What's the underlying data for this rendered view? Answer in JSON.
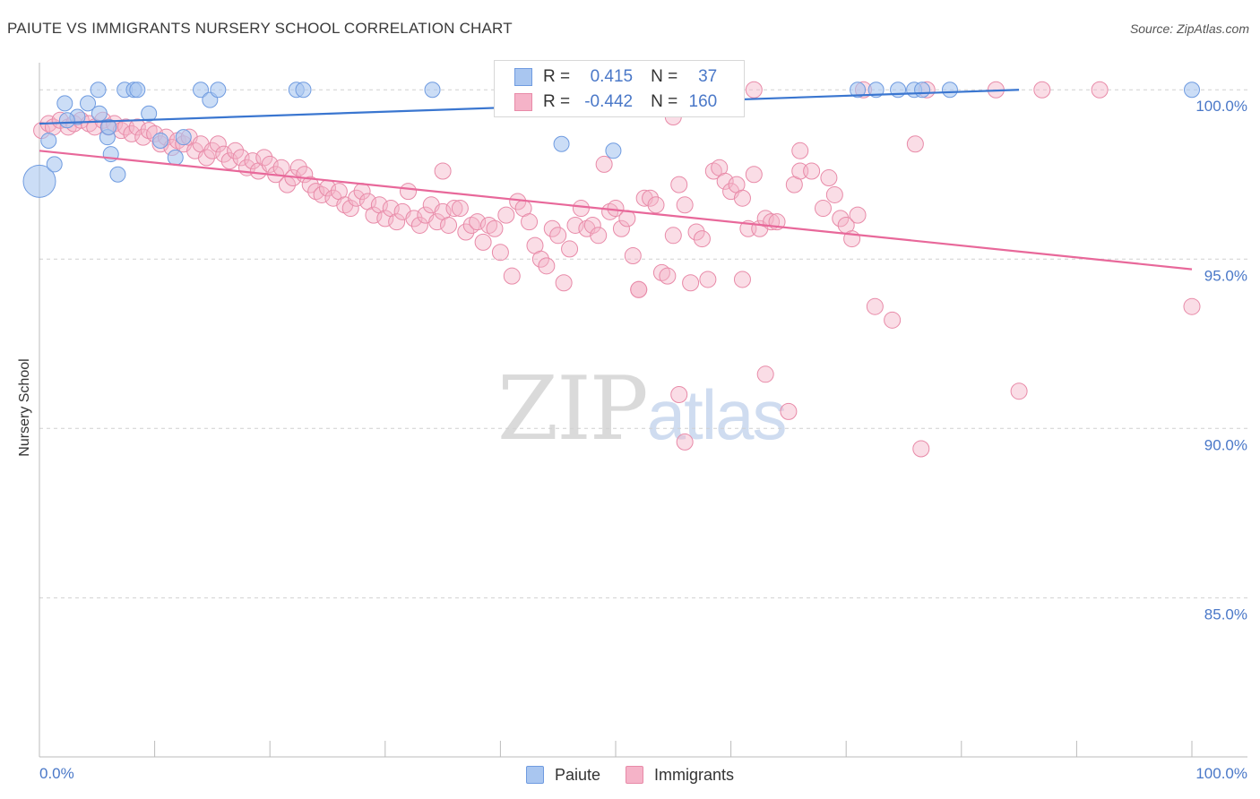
{
  "title": "PAIUTE VS IMMIGRANTS NURSERY SCHOOL CORRELATION CHART",
  "source": "Source: ZipAtlas.com",
  "watermark": {
    "zip": "ZIP",
    "atlas": "atlas"
  },
  "legend_top": {
    "r_label": "R =",
    "n_label": "N =",
    "rows": [
      {
        "name": "Paiute",
        "r": "0.415",
        "n": "37"
      },
      {
        "name": "Immigrants",
        "r": "-0.442",
        "n": "160"
      }
    ]
  },
  "legend_bottom": [
    "Paiute",
    "Immigrants"
  ],
  "colors": {
    "paiute_fill": "#a9c6f0",
    "paiute_stroke": "#6f9be0",
    "paiute_line": "#3a76d0",
    "immigrants_fill": "#f5b3c8",
    "immigrants_stroke": "#e88aa8",
    "immigrants_line": "#e8689a",
    "tick_text": "#4a78c8",
    "grid": "#d0d0d0"
  },
  "chart_data": {
    "type": "scatter",
    "title": "PAIUTE VS IMMIGRANTS NURSERY SCHOOL CORRELATION CHART",
    "xlabel": "",
    "ylabel": "Nursery School",
    "xlim": [
      0,
      100
    ],
    "ylim": [
      80.3,
      100.8
    ],
    "x_tick_labels": [
      "0.0%",
      "100.0%"
    ],
    "y_ticks": [
      85,
      90,
      95,
      100
    ],
    "y_tick_labels": [
      "85.0%",
      "90.0%",
      "95.0%",
      "100.0%"
    ],
    "grid": true,
    "series": [
      {
        "name": "Paiute",
        "r": 0.415,
        "n": 37,
        "trend": {
          "x": [
            0,
            85
          ],
          "y": [
            99.0,
            100.0
          ]
        },
        "points": [
          [
            0.0,
            97.3
          ],
          [
            0.8,
            98.5
          ],
          [
            1.3,
            97.8
          ],
          [
            2.2,
            99.6
          ],
          [
            3.3,
            99.2
          ],
          [
            4.2,
            99.6
          ],
          [
            5.1,
            100.0
          ],
          [
            5.2,
            99.3
          ],
          [
            5.9,
            98.6
          ],
          [
            6.2,
            98.1
          ],
          [
            6.8,
            97.5
          ],
          [
            7.4,
            100.0
          ],
          [
            8.2,
            100.0
          ],
          [
            8.5,
            100.0
          ],
          [
            9.5,
            99.3
          ],
          [
            10.5,
            98.5
          ],
          [
            11.8,
            98.0
          ],
          [
            12.5,
            98.6
          ],
          [
            14.0,
            100.0
          ],
          [
            14.8,
            99.7
          ],
          [
            15.5,
            100.0
          ],
          [
            22.3,
            100.0
          ],
          [
            22.9,
            100.0
          ],
          [
            34.1,
            100.0
          ],
          [
            45.0,
            100.0
          ],
          [
            45.9,
            100.0
          ],
          [
            45.3,
            98.4
          ],
          [
            49.8,
            98.2
          ],
          [
            71.0,
            100.0
          ],
          [
            72.6,
            100.0
          ],
          [
            74.5,
            100.0
          ],
          [
            75.9,
            100.0
          ],
          [
            76.6,
            100.0
          ],
          [
            79.0,
            100.0
          ],
          [
            100.0,
            100.0
          ],
          [
            2.4,
            99.1
          ],
          [
            6.0,
            98.9
          ]
        ]
      },
      {
        "name": "Immigrants",
        "r": -0.442,
        "n": 160,
        "trend": {
          "x": [
            0,
            100
          ],
          "y": [
            98.2,
            94.7
          ]
        },
        "points": [
          [
            0.2,
            98.8
          ],
          [
            0.8,
            99.0
          ],
          [
            1.2,
            98.9
          ],
          [
            1.8,
            99.1
          ],
          [
            2.5,
            98.9
          ],
          [
            3.0,
            99.0
          ],
          [
            3.6,
            99.1
          ],
          [
            4.3,
            99.0
          ],
          [
            4.8,
            98.9
          ],
          [
            5.5,
            99.1
          ],
          [
            6.0,
            98.9
          ],
          [
            6.5,
            99.0
          ],
          [
            7.1,
            98.8
          ],
          [
            7.5,
            98.9
          ],
          [
            8.0,
            98.7
          ],
          [
            8.5,
            98.9
          ],
          [
            9.0,
            98.6
          ],
          [
            9.5,
            98.8
          ],
          [
            10.0,
            98.7
          ],
          [
            10.5,
            98.4
          ],
          [
            11.0,
            98.6
          ],
          [
            11.5,
            98.3
          ],
          [
            12.0,
            98.5
          ],
          [
            12.5,
            98.4
          ],
          [
            13.0,
            98.6
          ],
          [
            13.5,
            98.2
          ],
          [
            14.0,
            98.4
          ],
          [
            14.5,
            98.0
          ],
          [
            15.0,
            98.2
          ],
          [
            15.5,
            98.4
          ],
          [
            16.0,
            98.1
          ],
          [
            16.5,
            97.9
          ],
          [
            17.0,
            98.2
          ],
          [
            17.5,
            98.0
          ],
          [
            18.0,
            97.7
          ],
          [
            18.5,
            97.9
          ],
          [
            19.0,
            97.6
          ],
          [
            19.5,
            98.0
          ],
          [
            20.0,
            97.8
          ],
          [
            20.5,
            97.5
          ],
          [
            21.0,
            97.7
          ],
          [
            21.5,
            97.2
          ],
          [
            22.0,
            97.4
          ],
          [
            22.5,
            97.7
          ],
          [
            23.0,
            97.5
          ],
          [
            23.5,
            97.2
          ],
          [
            24.0,
            97.0
          ],
          [
            24.5,
            96.9
          ],
          [
            25.0,
            97.1
          ],
          [
            25.5,
            96.8
          ],
          [
            26.0,
            97.0
          ],
          [
            26.5,
            96.6
          ],
          [
            27.0,
            96.5
          ],
          [
            27.5,
            96.8
          ],
          [
            28.0,
            97.0
          ],
          [
            28.5,
            96.7
          ],
          [
            29.0,
            96.3
          ],
          [
            29.5,
            96.6
          ],
          [
            30.0,
            96.2
          ],
          [
            30.5,
            96.5
          ],
          [
            31.0,
            96.1
          ],
          [
            31.5,
            96.4
          ],
          [
            32.0,
            97.0
          ],
          [
            32.5,
            96.2
          ],
          [
            33.0,
            96.0
          ],
          [
            33.5,
            96.3
          ],
          [
            34.0,
            96.6
          ],
          [
            34.5,
            96.1
          ],
          [
            35.0,
            96.4
          ],
          [
            35.5,
            96.0
          ],
          [
            36.0,
            96.5
          ],
          [
            36.5,
            96.5
          ],
          [
            37.0,
            95.8
          ],
          [
            37.5,
            96.0
          ],
          [
            38.0,
            96.1
          ],
          [
            38.5,
            95.5
          ],
          [
            39.0,
            96.0
          ],
          [
            39.5,
            95.9
          ],
          [
            40.0,
            95.2
          ],
          [
            40.5,
            96.3
          ],
          [
            41.0,
            94.5
          ],
          [
            41.5,
            96.7
          ],
          [
            42.0,
            96.5
          ],
          [
            42.5,
            96.1
          ],
          [
            43.0,
            95.4
          ],
          [
            43.5,
            95.0
          ],
          [
            44.0,
            94.8
          ],
          [
            44.5,
            95.9
          ],
          [
            45.0,
            95.7
          ],
          [
            45.5,
            94.3
          ],
          [
            46.0,
            95.3
          ],
          [
            46.5,
            96.0
          ],
          [
            47.0,
            96.5
          ],
          [
            47.5,
            95.9
          ],
          [
            48.0,
            96.0
          ],
          [
            48.5,
            95.7
          ],
          [
            49.0,
            97.8
          ],
          [
            49.5,
            96.4
          ],
          [
            50.0,
            96.5
          ],
          [
            50.5,
            95.9
          ],
          [
            51.0,
            96.2
          ],
          [
            51.5,
            95.1
          ],
          [
            52.0,
            94.1
          ],
          [
            52.5,
            96.8
          ],
          [
            53.0,
            96.8
          ],
          [
            53.5,
            96.6
          ],
          [
            54.0,
            94.6
          ],
          [
            54.5,
            94.5
          ],
          [
            55.0,
            95.7
          ],
          [
            55.5,
            97.2
          ],
          [
            56.0,
            96.6
          ],
          [
            57.0,
            95.8
          ],
          [
            57.5,
            95.6
          ],
          [
            58.0,
            94.4
          ],
          [
            58.5,
            97.6
          ],
          [
            59.0,
            97.7
          ],
          [
            59.5,
            97.3
          ],
          [
            60.0,
            97.0
          ],
          [
            60.5,
            97.2
          ],
          [
            61.0,
            96.8
          ],
          [
            61.5,
            95.9
          ],
          [
            62.0,
            97.5
          ],
          [
            62.5,
            95.9
          ],
          [
            63.0,
            96.2
          ],
          [
            63.5,
            96.1
          ],
          [
            64.0,
            96.1
          ],
          [
            65.5,
            97.2
          ],
          [
            66.0,
            97.6
          ],
          [
            67.0,
            97.6
          ],
          [
            68.0,
            96.5
          ],
          [
            68.5,
            97.4
          ],
          [
            69.0,
            96.9
          ],
          [
            69.5,
            96.2
          ],
          [
            70.0,
            96.0
          ],
          [
            70.5,
            95.6
          ],
          [
            71.0,
            96.3
          ],
          [
            72.5,
            93.6
          ],
          [
            74.0,
            93.2
          ],
          [
            76.0,
            98.4
          ],
          [
            66.0,
            98.2
          ],
          [
            35.0,
            97.6
          ],
          [
            61.0,
            94.4
          ],
          [
            56.5,
            94.3
          ],
          [
            52.0,
            94.1
          ],
          [
            63.0,
            91.6
          ],
          [
            55.5,
            91.0
          ],
          [
            65.0,
            90.5
          ],
          [
            85.0,
            91.1
          ],
          [
            76.5,
            89.4
          ],
          [
            56.0,
            89.6
          ],
          [
            100.0,
            93.6
          ],
          [
            62.0,
            100.0
          ],
          [
            71.5,
            100.0
          ],
          [
            77.0,
            100.0
          ],
          [
            83.0,
            100.0
          ],
          [
            87.0,
            100.0
          ],
          [
            92.0,
            100.0
          ],
          [
            55.0,
            99.2
          ]
        ]
      }
    ]
  }
}
